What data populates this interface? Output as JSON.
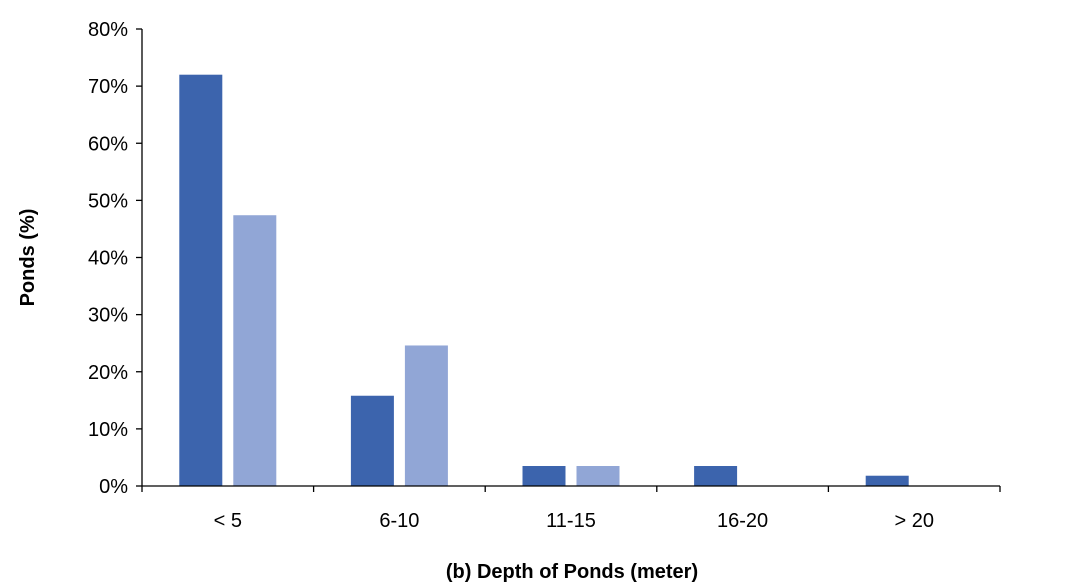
{
  "chart_data": {
    "type": "bar",
    "title": "",
    "xlabel": "(b) Depth of Ponds (meter)",
    "ylabel": "Ponds (%)",
    "categories": [
      "< 5",
      "6-10",
      "11-15",
      "16-20",
      "> 20"
    ],
    "series": [
      {
        "values": [
          72.0,
          15.8,
          3.5,
          3.5,
          1.8
        ],
        "color": "#3c64ad"
      },
      {
        "values": [
          47.4,
          24.6,
          3.5,
          0,
          0
        ],
        "color": "#91a6d6"
      }
    ],
    "ylim": [
      0,
      80
    ],
    "yticks": [
      0,
      10,
      20,
      30,
      40,
      50,
      60,
      70,
      80
    ],
    "ytick_labels": [
      "0%",
      "10%",
      "20%",
      "30%",
      "40%",
      "50%",
      "60%",
      "70%",
      "80%"
    ],
    "grid": false,
    "legend": "none"
  }
}
